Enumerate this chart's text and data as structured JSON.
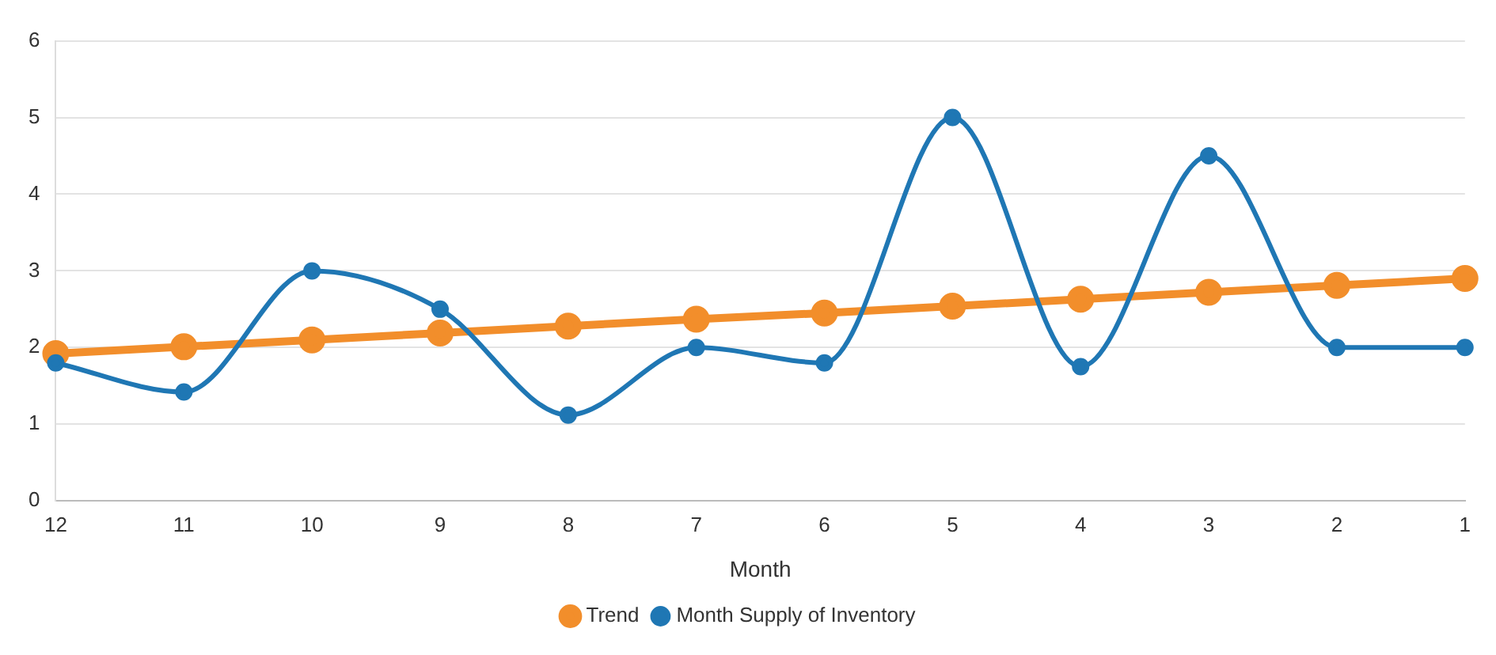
{
  "chart_data": {
    "type": "line",
    "xlabel": "Month",
    "categories": [
      "12",
      "11",
      "10",
      "9",
      "8",
      "7",
      "6",
      "5",
      "4",
      "3",
      "2",
      "1"
    ],
    "series": [
      {
        "name": "Trend",
        "color": "#f28e2b",
        "values": [
          1.92,
          2.01,
          2.1,
          2.19,
          2.28,
          2.37,
          2.45,
          2.54,
          2.63,
          2.72,
          2.81,
          2.9
        ]
      },
      {
        "name": "Month Supply of Inventory",
        "color": "#1f77b4",
        "values": [
          1.8,
          1.42,
          3.0,
          2.5,
          1.12,
          2.0,
          1.8,
          5.0,
          1.75,
          4.5,
          2.0,
          2.0
        ]
      }
    ],
    "ylim": [
      0,
      6
    ],
    "yticks": [
      0,
      1,
      2,
      3,
      4,
      5,
      6
    ],
    "grid": "y",
    "legend": "bottom",
    "marker": "circle",
    "line_style": "solid"
  }
}
